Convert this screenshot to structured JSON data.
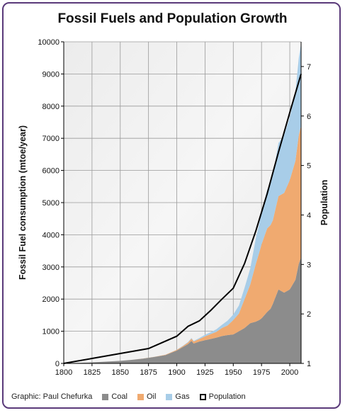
{
  "chart_data": {
    "type": "area",
    "title": "Fossil Fuels and Population Growth",
    "credit": "Graphic: Paul Chefurka",
    "xlabel": "",
    "ylabel": "Fossil Fuel consumption (mtoe/year)",
    "y2label": "Population",
    "xlim": [
      1800,
      2010
    ],
    "ylim": [
      0,
      10000
    ],
    "y2lim": [
      1,
      7.5
    ],
    "xticks": [
      "1800",
      "1825",
      "1850",
      "1875",
      "1900",
      "1925",
      "1950",
      "1975",
      "2000"
    ],
    "yticks": [
      "0",
      "1000",
      "2000",
      "3000",
      "4000",
      "5000",
      "6000",
      "7000",
      "8000",
      "9000",
      "10000"
    ],
    "y2ticks": [
      "1",
      "2",
      "3",
      "4",
      "5",
      "6",
      "7"
    ],
    "grid": true,
    "legend_position": "bottom",
    "x": [
      1800,
      1810,
      1820,
      1830,
      1840,
      1850,
      1860,
      1870,
      1880,
      1890,
      1900,
      1905,
      1910,
      1913,
      1915,
      1920,
      1925,
      1930,
      1935,
      1940,
      1945,
      1950,
      1955,
      1960,
      1965,
      1970,
      1973,
      1975,
      1980,
      1983,
      1985,
      1990,
      1995,
      2000,
      2005,
      2008,
      2010
    ],
    "series": [
      {
        "name": "Coal",
        "color": "#8c8c8c",
        "values": [
          10,
          15,
          25,
          40,
          60,
          80,
          110,
          150,
          200,
          260,
          400,
          500,
          600,
          700,
          620,
          680,
          720,
          760,
          800,
          850,
          880,
          900,
          1000,
          1100,
          1250,
          1300,
          1350,
          1400,
          1600,
          1700,
          1850,
          2300,
          2200,
          2300,
          2600,
          3100,
          3300
        ]
      },
      {
        "name": "Oil",
        "color": "#f0aa70",
        "values": [
          0,
          0,
          0,
          0,
          0,
          0,
          1,
          2,
          5,
          10,
          20,
          30,
          50,
          70,
          60,
          80,
          120,
          150,
          180,
          250,
          300,
          450,
          550,
          900,
          1200,
          1800,
          2100,
          2300,
          2600,
          2600,
          2600,
          2900,
          3100,
          3400,
          3700,
          4000,
          4100
        ]
      },
      {
        "name": "Gas",
        "color": "#a8cde8",
        "values": [
          0,
          0,
          0,
          0,
          0,
          0,
          0,
          0,
          0,
          0,
          5,
          10,
          15,
          20,
          20,
          30,
          50,
          60,
          80,
          100,
          150,
          170,
          250,
          350,
          500,
          800,
          900,
          1000,
          1200,
          1300,
          1400,
          1650,
          1800,
          1950,
          2150,
          2400,
          2550
        ]
      },
      {
        "name": "Population",
        "color": "#000000",
        "axis": "right",
        "x": [
          1800,
          1825,
          1850,
          1875,
          1900,
          1910,
          1920,
          1930,
          1940,
          1950,
          1960,
          1970,
          1980,
          1990,
          2000,
          2010
        ],
        "values": [
          1.0,
          1.1,
          1.2,
          1.3,
          1.55,
          1.75,
          1.86,
          2.07,
          2.3,
          2.52,
          3.02,
          3.68,
          4.43,
          5.27,
          6.07,
          6.85
        ]
      }
    ]
  }
}
